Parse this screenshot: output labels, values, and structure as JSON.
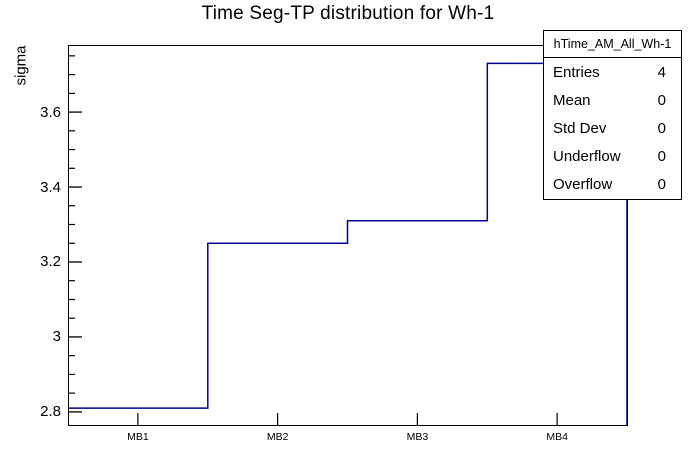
{
  "chart_data": {
    "type": "step-histogram",
    "title": "Time Seg-TP distribution for Wh-1",
    "ylabel": "sigma",
    "xlabel": "",
    "categories": [
      "MB1",
      "MB2",
      "MB3",
      "MB4"
    ],
    "values": [
      2.81,
      3.25,
      3.31,
      3.73
    ],
    "ylim": [
      2.765,
      3.779
    ],
    "ytick_majors": [
      2.8,
      3.0,
      3.2,
      3.4,
      3.6
    ],
    "ytick_labels": [
      "2.8",
      "3",
      "3.2",
      "3.4",
      "3.6"
    ],
    "ytick_minor_step": 0.05,
    "grid": false,
    "legend_position": "top-right",
    "line_color": "#000099",
    "axis_color": "#000000",
    "background_color": "#ffffff"
  },
  "stats_box": {
    "title": "hTime_AM_All_Wh-1",
    "rows": [
      {
        "label": "Entries",
        "value": "4"
      },
      {
        "label": "Mean",
        "value": "0"
      },
      {
        "label": "Std Dev",
        "value": "0"
      },
      {
        "label": "Underflow",
        "value": "0"
      },
      {
        "label": "Overflow",
        "value": "0"
      }
    ]
  }
}
